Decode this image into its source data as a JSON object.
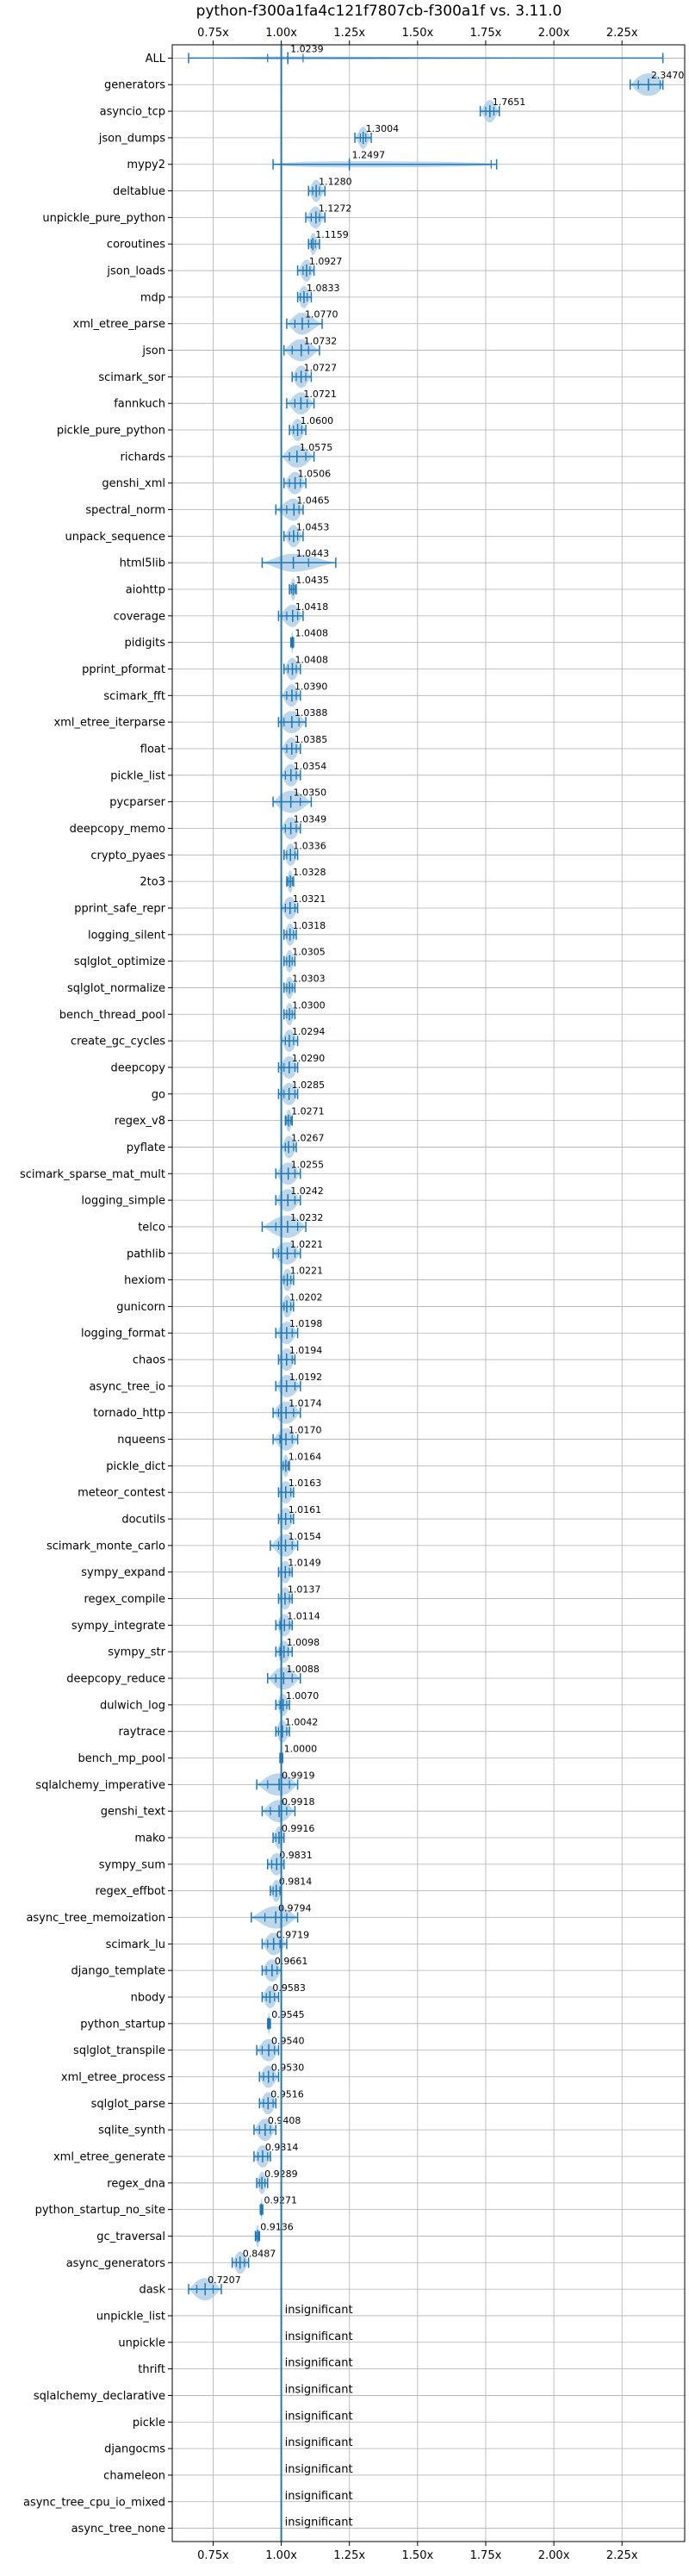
{
  "chart_data": {
    "type": "violin",
    "title": "python-f300a1fa4c121f7807cb-f300a1f vs. 3.11.0",
    "xlabel": "",
    "ylabel": "",
    "xlim": [
      0.6,
      2.48
    ],
    "xticks": [
      0.75,
      1.0,
      1.25,
      1.5,
      1.75,
      2.0,
      2.25
    ],
    "xtick_labels": [
      "0.75x",
      "1.00x",
      "1.25x",
      "1.50x",
      "1.75x",
      "2.00x",
      "2.25x"
    ],
    "xticks_on_top": true,
    "xticks_on_bottom": true,
    "grid": true,
    "reference_line": 1.0,
    "colors": {
      "accent": "#1f77b4",
      "violin": "#a6c8e6",
      "grid": "#b0b0b0"
    },
    "insignificant_label": "insignificant",
    "benchmarks": [
      {
        "name": "ALL",
        "value": 1.0239,
        "label": "1.0239",
        "min": 0.66,
        "max": 2.4,
        "q1": 0.95,
        "q3": 1.08
      },
      {
        "name": "generators",
        "value": 2.347,
        "label": "2.3470",
        "min": 2.28,
        "max": 2.4,
        "q1": 2.31,
        "q3": 2.39
      },
      {
        "name": "asyncio_tcp",
        "value": 1.7651,
        "label": "1.7651",
        "min": 1.73,
        "max": 1.8,
        "q1": 1.75,
        "q3": 1.78
      },
      {
        "name": "json_dumps",
        "value": 1.3004,
        "label": "1.3004",
        "min": 1.27,
        "max": 1.33,
        "q1": 1.29,
        "q3": 1.31
      },
      {
        "name": "mypy2",
        "value": 1.2497,
        "label": "1.2497",
        "min": 0.97,
        "max": 1.79,
        "q1": 1.0,
        "q3": 1.77
      },
      {
        "name": "deltablue",
        "value": 1.128,
        "label": "1.1280",
        "min": 1.1,
        "max": 1.16,
        "q1": 1.115,
        "q3": 1.14
      },
      {
        "name": "unpickle_pure_python",
        "value": 1.1272,
        "label": "1.1272",
        "min": 1.09,
        "max": 1.16,
        "q1": 1.11,
        "q3": 1.14
      },
      {
        "name": "coroutines",
        "value": 1.1159,
        "label": "1.1159",
        "min": 1.1,
        "max": 1.14,
        "q1": 1.11,
        "q3": 1.125
      },
      {
        "name": "json_loads",
        "value": 1.0927,
        "label": "1.0927",
        "min": 1.06,
        "max": 1.12,
        "q1": 1.08,
        "q3": 1.105
      },
      {
        "name": "mdp",
        "value": 1.0833,
        "label": "1.0833",
        "min": 1.06,
        "max": 1.11,
        "q1": 1.07,
        "q3": 1.095
      },
      {
        "name": "xml_etree_parse",
        "value": 1.077,
        "label": "1.0770",
        "min": 1.02,
        "max": 1.15,
        "q1": 1.05,
        "q3": 1.1
      },
      {
        "name": "json",
        "value": 1.0732,
        "label": "1.0732",
        "min": 1.01,
        "max": 1.14,
        "q1": 1.04,
        "q3": 1.1
      },
      {
        "name": "scimark_sor",
        "value": 1.0727,
        "label": "1.0727",
        "min": 1.04,
        "max": 1.11,
        "q1": 1.055,
        "q3": 1.09
      },
      {
        "name": "fannkuch",
        "value": 1.0721,
        "label": "1.0721",
        "min": 1.02,
        "max": 1.12,
        "q1": 1.05,
        "q3": 1.095
      },
      {
        "name": "pickle_pure_python",
        "value": 1.06,
        "label": "1.0600",
        "min": 1.03,
        "max": 1.09,
        "q1": 1.045,
        "q3": 1.075
      },
      {
        "name": "richards",
        "value": 1.0575,
        "label": "1.0575",
        "min": 1.0,
        "max": 1.12,
        "q1": 1.03,
        "q3": 1.09
      },
      {
        "name": "genshi_xml",
        "value": 1.0506,
        "label": "1.0506",
        "min": 1.01,
        "max": 1.09,
        "q1": 1.03,
        "q3": 1.07
      },
      {
        "name": "spectral_norm",
        "value": 1.0465,
        "label": "1.0465",
        "min": 0.98,
        "max": 1.08,
        "q1": 1.02,
        "q3": 1.065
      },
      {
        "name": "unpack_sequence",
        "value": 1.0453,
        "label": "1.0453",
        "min": 1.01,
        "max": 1.08,
        "q1": 1.03,
        "q3": 1.06
      },
      {
        "name": "html5lib",
        "value": 1.0443,
        "label": "1.0443",
        "min": 0.93,
        "max": 1.2,
        "q1": 1.0,
        "q3": 1.1
      },
      {
        "name": "aiohttp",
        "value": 1.0435,
        "label": "1.0435",
        "min": 1.03,
        "max": 1.055,
        "q1": 1.037,
        "q3": 1.05
      },
      {
        "name": "coverage",
        "value": 1.0418,
        "label": "1.0418",
        "min": 0.99,
        "max": 1.08,
        "q1": 1.02,
        "q3": 1.06
      },
      {
        "name": "pidigits",
        "value": 1.0408,
        "label": "1.0408",
        "min": 1.035,
        "max": 1.045,
        "q1": 1.038,
        "q3": 1.043
      },
      {
        "name": "pprint_pformat",
        "value": 1.0408,
        "label": "1.0408",
        "min": 1.01,
        "max": 1.07,
        "q1": 1.025,
        "q3": 1.055
      },
      {
        "name": "scimark_fft",
        "value": 1.039,
        "label": "1.0390",
        "min": 1.0,
        "max": 1.07,
        "q1": 1.02,
        "q3": 1.055
      },
      {
        "name": "xml_etree_iterparse",
        "value": 1.0388,
        "label": "1.0388",
        "min": 0.99,
        "max": 1.09,
        "q1": 1.01,
        "q3": 1.065
      },
      {
        "name": "float",
        "value": 1.0385,
        "label": "1.0385",
        "min": 1.0,
        "max": 1.07,
        "q1": 1.02,
        "q3": 1.055
      },
      {
        "name": "pickle_list",
        "value": 1.0354,
        "label": "1.0354",
        "min": 1.0,
        "max": 1.07,
        "q1": 1.015,
        "q3": 1.055
      },
      {
        "name": "pycparser",
        "value": 1.035,
        "label": "1.0350",
        "min": 0.97,
        "max": 1.11,
        "q1": 1.0,
        "q3": 1.07
      },
      {
        "name": "deepcopy_memo",
        "value": 1.0349,
        "label": "1.0349",
        "min": 1.0,
        "max": 1.07,
        "q1": 1.015,
        "q3": 1.055
      },
      {
        "name": "crypto_pyaes",
        "value": 1.0336,
        "label": "1.0336",
        "min": 1.01,
        "max": 1.06,
        "q1": 1.02,
        "q3": 1.05
      },
      {
        "name": "2to3",
        "value": 1.0328,
        "label": "1.0328",
        "min": 1.02,
        "max": 1.045,
        "q1": 1.025,
        "q3": 1.04
      },
      {
        "name": "pprint_safe_repr",
        "value": 1.0321,
        "label": "1.0321",
        "min": 1.0,
        "max": 1.06,
        "q1": 1.015,
        "q3": 1.05
      },
      {
        "name": "logging_silent",
        "value": 1.0318,
        "label": "1.0318",
        "min": 1.01,
        "max": 1.055,
        "q1": 1.02,
        "q3": 1.045
      },
      {
        "name": "sqlglot_optimize",
        "value": 1.0305,
        "label": "1.0305",
        "min": 1.01,
        "max": 1.05,
        "q1": 1.02,
        "q3": 1.04
      },
      {
        "name": "sqlglot_normalize",
        "value": 1.0303,
        "label": "1.0303",
        "min": 1.01,
        "max": 1.05,
        "q1": 1.02,
        "q3": 1.04
      },
      {
        "name": "bench_thread_pool",
        "value": 1.03,
        "label": "1.0300",
        "min": 1.01,
        "max": 1.05,
        "q1": 1.02,
        "q3": 1.04
      },
      {
        "name": "create_gc_cycles",
        "value": 1.0294,
        "label": "1.0294",
        "min": 1.0,
        "max": 1.06,
        "q1": 1.015,
        "q3": 1.045
      },
      {
        "name": "deepcopy",
        "value": 1.029,
        "label": "1.0290",
        "min": 0.99,
        "max": 1.06,
        "q1": 1.01,
        "q3": 1.05
      },
      {
        "name": "go",
        "value": 1.0285,
        "label": "1.0285",
        "min": 0.99,
        "max": 1.06,
        "q1": 1.01,
        "q3": 1.05
      },
      {
        "name": "regex_v8",
        "value": 1.0271,
        "label": "1.0271",
        "min": 1.015,
        "max": 1.04,
        "q1": 1.02,
        "q3": 1.035
      },
      {
        "name": "pyflate",
        "value": 1.0267,
        "label": "1.0267",
        "min": 1.0,
        "max": 1.055,
        "q1": 1.015,
        "q3": 1.045
      },
      {
        "name": "scimark_sparse_mat_mult",
        "value": 1.0255,
        "label": "1.0255",
        "min": 0.98,
        "max": 1.07,
        "q1": 1.0,
        "q3": 1.05
      },
      {
        "name": "logging_simple",
        "value": 1.0242,
        "label": "1.0242",
        "min": 0.98,
        "max": 1.07,
        "q1": 1.0,
        "q3": 1.05
      },
      {
        "name": "telco",
        "value": 1.0232,
        "label": "1.0232",
        "min": 0.93,
        "max": 1.09,
        "q1": 0.98,
        "q3": 1.06
      },
      {
        "name": "pathlib",
        "value": 1.0221,
        "label": "1.0221",
        "min": 0.97,
        "max": 1.07,
        "q1": 0.99,
        "q3": 1.05
      },
      {
        "name": "hexiom",
        "value": 1.0221,
        "label": "1.0221",
        "min": 1.0,
        "max": 1.045,
        "q1": 1.01,
        "q3": 1.035
      },
      {
        "name": "gunicorn",
        "value": 1.0202,
        "label": "1.0202",
        "min": 1.0,
        "max": 1.045,
        "q1": 1.01,
        "q3": 1.035
      },
      {
        "name": "logging_format",
        "value": 1.0198,
        "label": "1.0198",
        "min": 0.98,
        "max": 1.06,
        "q1": 1.0,
        "q3": 1.04
      },
      {
        "name": "chaos",
        "value": 1.0194,
        "label": "1.0194",
        "min": 0.99,
        "max": 1.05,
        "q1": 1.0,
        "q3": 1.04
      },
      {
        "name": "async_tree_io",
        "value": 1.0192,
        "label": "1.0192",
        "min": 0.98,
        "max": 1.07,
        "q1": 1.0,
        "q3": 1.05
      },
      {
        "name": "tornado_http",
        "value": 1.0174,
        "label": "1.0174",
        "min": 0.97,
        "max": 1.07,
        "q1": 0.99,
        "q3": 1.045
      },
      {
        "name": "nqueens",
        "value": 1.017,
        "label": "1.0170",
        "min": 0.97,
        "max": 1.06,
        "q1": 0.995,
        "q3": 1.04
      },
      {
        "name": "pickle_dict",
        "value": 1.0164,
        "label": "1.0164",
        "min": 1.0,
        "max": 1.03,
        "q1": 1.008,
        "q3": 1.025
      },
      {
        "name": "meteor_contest",
        "value": 1.0163,
        "label": "1.0163",
        "min": 0.99,
        "max": 1.045,
        "q1": 1.0,
        "q3": 1.035
      },
      {
        "name": "docutils",
        "value": 1.0161,
        "label": "1.0161",
        "min": 0.99,
        "max": 1.045,
        "q1": 1.0,
        "q3": 1.035
      },
      {
        "name": "scimark_monte_carlo",
        "value": 1.0154,
        "label": "1.0154",
        "min": 0.96,
        "max": 1.06,
        "q1": 0.99,
        "q3": 1.04
      },
      {
        "name": "sympy_expand",
        "value": 1.0149,
        "label": "1.0149",
        "min": 0.99,
        "max": 1.04,
        "q1": 1.0,
        "q3": 1.03
      },
      {
        "name": "regex_compile",
        "value": 1.0137,
        "label": "1.0137",
        "min": 0.99,
        "max": 1.04,
        "q1": 1.0,
        "q3": 1.03
      },
      {
        "name": "sympy_integrate",
        "value": 1.0114,
        "label": "1.0114",
        "min": 0.98,
        "max": 1.04,
        "q1": 0.995,
        "q3": 1.03
      },
      {
        "name": "sympy_str",
        "value": 1.0098,
        "label": "1.0098",
        "min": 0.98,
        "max": 1.04,
        "q1": 0.995,
        "q3": 1.025
      },
      {
        "name": "deepcopy_reduce",
        "value": 1.0088,
        "label": "1.0088",
        "min": 0.95,
        "max": 1.07,
        "q1": 0.98,
        "q3": 1.04
      },
      {
        "name": "dulwich_log",
        "value": 1.007,
        "label": "1.0070",
        "min": 0.98,
        "max": 1.03,
        "q1": 0.995,
        "q3": 1.02
      },
      {
        "name": "raytrace",
        "value": 1.0042,
        "label": "1.0042",
        "min": 0.98,
        "max": 1.03,
        "q1": 0.99,
        "q3": 1.02
      },
      {
        "name": "bench_mp_pool",
        "value": 1.0,
        "label": "1.0000",
        "min": 0.995,
        "max": 1.005,
        "q1": 0.998,
        "q3": 1.002
      },
      {
        "name": "sqlalchemy_imperative",
        "value": 0.9919,
        "label": "0.9919",
        "min": 0.91,
        "max": 1.06,
        "q1": 0.95,
        "q3": 1.03
      },
      {
        "name": "genshi_text",
        "value": 0.9918,
        "label": "0.9918",
        "min": 0.93,
        "max": 1.05,
        "q1": 0.96,
        "q3": 1.02
      },
      {
        "name": "mako",
        "value": 0.9916,
        "label": "0.9916",
        "min": 0.97,
        "max": 1.01,
        "q1": 0.98,
        "q3": 1.0
      },
      {
        "name": "sympy_sum",
        "value": 0.9831,
        "label": "0.9831",
        "min": 0.95,
        "max": 1.01,
        "q1": 0.965,
        "q3": 1.0
      },
      {
        "name": "regex_effbot",
        "value": 0.9814,
        "label": "0.9814",
        "min": 0.96,
        "max": 1.0,
        "q1": 0.97,
        "q3": 0.995
      },
      {
        "name": "async_tree_memoization",
        "value": 0.9794,
        "label": "0.9794",
        "min": 0.89,
        "max": 1.06,
        "q1": 0.94,
        "q3": 1.02
      },
      {
        "name": "scimark_lu",
        "value": 0.9719,
        "label": "0.9719",
        "min": 0.93,
        "max": 1.02,
        "q1": 0.95,
        "q3": 0.995
      },
      {
        "name": "django_template",
        "value": 0.9661,
        "label": "0.9661",
        "min": 0.93,
        "max": 1.0,
        "q1": 0.945,
        "q3": 0.985
      },
      {
        "name": "nbody",
        "value": 0.9583,
        "label": "0.9583",
        "min": 0.93,
        "max": 0.99,
        "q1": 0.945,
        "q3": 0.975
      },
      {
        "name": "python_startup",
        "value": 0.9545,
        "label": "0.9545",
        "min": 0.95,
        "max": 0.96,
        "q1": 0.952,
        "q3": 0.957
      },
      {
        "name": "sqlglot_transpile",
        "value": 0.954,
        "label": "0.9540",
        "min": 0.91,
        "max": 0.99,
        "q1": 0.93,
        "q3": 0.975
      },
      {
        "name": "xml_etree_process",
        "value": 0.953,
        "label": "0.9530",
        "min": 0.92,
        "max": 0.99,
        "q1": 0.935,
        "q3": 0.97
      },
      {
        "name": "sqlglot_parse",
        "value": 0.9516,
        "label": "0.9516",
        "min": 0.92,
        "max": 0.98,
        "q1": 0.935,
        "q3": 0.97
      },
      {
        "name": "sqlite_synth",
        "value": 0.9408,
        "label": "0.9408",
        "min": 0.9,
        "max": 0.98,
        "q1": 0.92,
        "q3": 0.96
      },
      {
        "name": "xml_etree_generate",
        "value": 0.9314,
        "label": "0.9314",
        "min": 0.9,
        "max": 0.96,
        "q1": 0.915,
        "q3": 0.95
      },
      {
        "name": "regex_dna",
        "value": 0.9289,
        "label": "0.9289",
        "min": 0.91,
        "max": 0.95,
        "q1": 0.92,
        "q3": 0.94
      },
      {
        "name": "python_startup_no_site",
        "value": 0.9271,
        "label": "0.9271",
        "min": 0.923,
        "max": 0.932,
        "q1": 0.925,
        "q3": 0.93
      },
      {
        "name": "gc_traversal",
        "value": 0.9136,
        "label": "0.9136",
        "min": 0.905,
        "max": 0.92,
        "q1": 0.908,
        "q3": 0.918
      },
      {
        "name": "async_generators",
        "value": 0.8487,
        "label": "0.8487",
        "min": 0.82,
        "max": 0.88,
        "q1": 0.835,
        "q3": 0.865
      },
      {
        "name": "dask",
        "value": 0.7207,
        "label": "0.7207",
        "min": 0.66,
        "max": 0.78,
        "q1": 0.69,
        "q3": 0.75
      },
      {
        "name": "unpickle_list",
        "value": null,
        "label": "insignificant"
      },
      {
        "name": "unpickle",
        "value": null,
        "label": "insignificant"
      },
      {
        "name": "thrift",
        "value": null,
        "label": "insignificant"
      },
      {
        "name": "sqlalchemy_declarative",
        "value": null,
        "label": "insignificant"
      },
      {
        "name": "pickle",
        "value": null,
        "label": "insignificant"
      },
      {
        "name": "djangocms",
        "value": null,
        "label": "insignificant"
      },
      {
        "name": "chameleon",
        "value": null,
        "label": "insignificant"
      },
      {
        "name": "async_tree_cpu_io_mixed",
        "value": null,
        "label": "insignificant"
      },
      {
        "name": "async_tree_none",
        "value": null,
        "label": "insignificant"
      }
    ]
  }
}
